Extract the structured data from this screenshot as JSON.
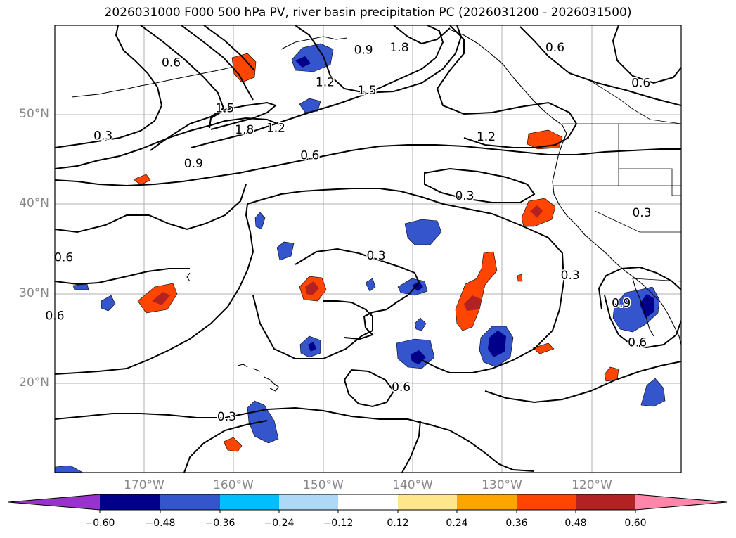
{
  "title": "2026031000 F000 500 hPa PV, river basin precipitation PC (2026031200 - 2026031500)",
  "map": {
    "lon_range": [
      -180,
      -110
    ],
    "lat_range": [
      10,
      60
    ],
    "lat_labels": [
      "20°N",
      "30°N",
      "40°N",
      "50°N"
    ],
    "lon_labels": [
      "170°W",
      "160°W",
      "150°W",
      "140°W",
      "130°W",
      "120°W"
    ],
    "contour_labels": [
      {
        "text": "0.3",
        "lon": -174.6,
        "lat": 47.6
      },
      {
        "text": "0.6",
        "lon": -167,
        "lat": 55.8
      },
      {
        "text": "0.9",
        "lon": -145.5,
        "lat": 57.2
      },
      {
        "text": "1.8",
        "lon": -141.5,
        "lat": 57.5
      },
      {
        "text": "1.2",
        "lon": -149.8,
        "lat": 53.6
      },
      {
        "text": "1.5",
        "lon": -145.1,
        "lat": 52.7
      },
      {
        "text": "1.5",
        "lon": -161,
        "lat": 50.7
      },
      {
        "text": "1.8",
        "lon": -158.8,
        "lat": 48.3
      },
      {
        "text": "1.2",
        "lon": -155.3,
        "lat": 48.5
      },
      {
        "text": "0.9",
        "lon": -164.5,
        "lat": 44.5
      },
      {
        "text": "0.6",
        "lon": -151.5,
        "lat": 45.4
      },
      {
        "text": "1.2",
        "lon": -131.8,
        "lat": 47.5
      },
      {
        "text": "0.3",
        "lon": -134.2,
        "lat": 40.9
      },
      {
        "text": "0.6",
        "lon": -124.1,
        "lat": 57.5
      },
      {
        "text": "0.6",
        "lon": -114.5,
        "lat": 53.5
      },
      {
        "text": "0.3",
        "lon": -114.4,
        "lat": 39
      },
      {
        "text": "0.6",
        "lon": -179,
        "lat": 34
      },
      {
        "text": "0.3",
        "lon": -144.1,
        "lat": 34.2
      },
      {
        "text": "0.3",
        "lon": -122.4,
        "lat": 32
      },
      {
        "text": "0.9",
        "lon": -116.7,
        "lat": 28.9
      },
      {
        "text": "0.6",
        "lon": -180,
        "lat": 27.5
      },
      {
        "text": "0.6",
        "lon": -114.9,
        "lat": 24.5
      },
      {
        "text": "0.6",
        "lon": -141.3,
        "lat": 19.5
      },
      {
        "text": "0.3",
        "lon": -160.8,
        "lat": 16.2
      }
    ]
  },
  "colorbar": {
    "colors": [
      "#9932cc",
      "#00008b",
      "#3455cc",
      "#00bfff",
      "#add8f6",
      "#ffffff",
      "#ffe68c",
      "#ffa500",
      "#ff4500",
      "#b22222",
      "#ff85ab"
    ],
    "tick_labels": [
      "−0.60",
      "−0.48",
      "−0.36",
      "−0.24",
      "−0.12",
      "0.12",
      "0.24",
      "0.36",
      "0.48",
      "0.60"
    ]
  }
}
